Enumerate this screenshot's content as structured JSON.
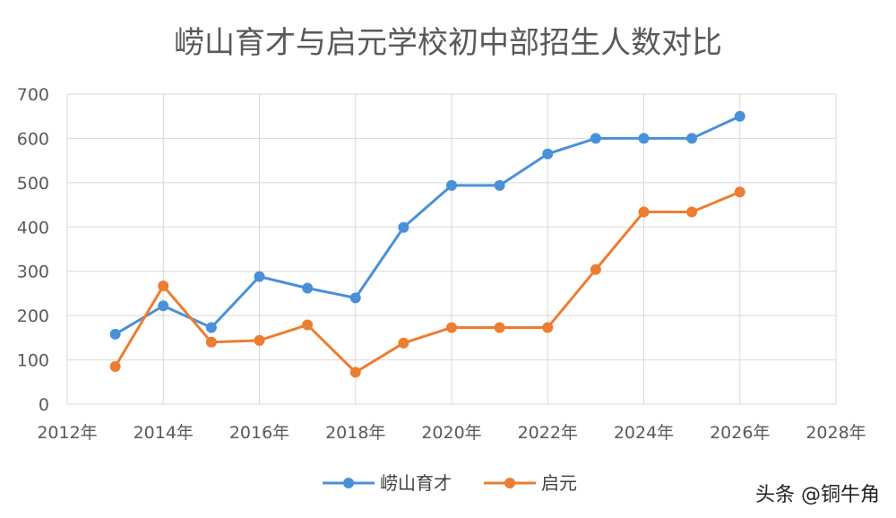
{
  "chart_data": {
    "type": "scatter",
    "title": "崂山育才与启元学校初中部招生人数对比",
    "xlim": [
      2012,
      2028
    ],
    "ylim": [
      0,
      700
    ],
    "x_ticks": [
      2012,
      2014,
      2016,
      2018,
      2020,
      2022,
      2024,
      2026,
      2028
    ],
    "x_tick_suffix": "年",
    "y_ticks": [
      0,
      100,
      200,
      300,
      400,
      500,
      600,
      700
    ],
    "grid": true,
    "legend_position": "bottom",
    "series": [
      {
        "name": "崂山育才",
        "color": "#4a90d9",
        "x": [
          2013,
          2014,
          2015,
          2016,
          2017,
          2018,
          2019,
          2020,
          2021,
          2022,
          2023,
          2024,
          2025,
          2026
        ],
        "y": [
          158,
          222,
          173,
          288,
          262,
          240,
          399,
          494,
          494,
          565,
          600,
          600,
          600,
          650
        ]
      },
      {
        "name": "启元",
        "color": "#ed7d31",
        "x": [
          2013,
          2014,
          2015,
          2016,
          2017,
          2018,
          2019,
          2020,
          2021,
          2022,
          2023,
          2024,
          2025,
          2026
        ],
        "y": [
          85,
          267,
          140,
          144,
          179,
          72,
          138,
          173,
          173,
          173,
          304,
          434,
          434,
          479
        ]
      }
    ]
  },
  "watermark": "头条 @铜牛角"
}
